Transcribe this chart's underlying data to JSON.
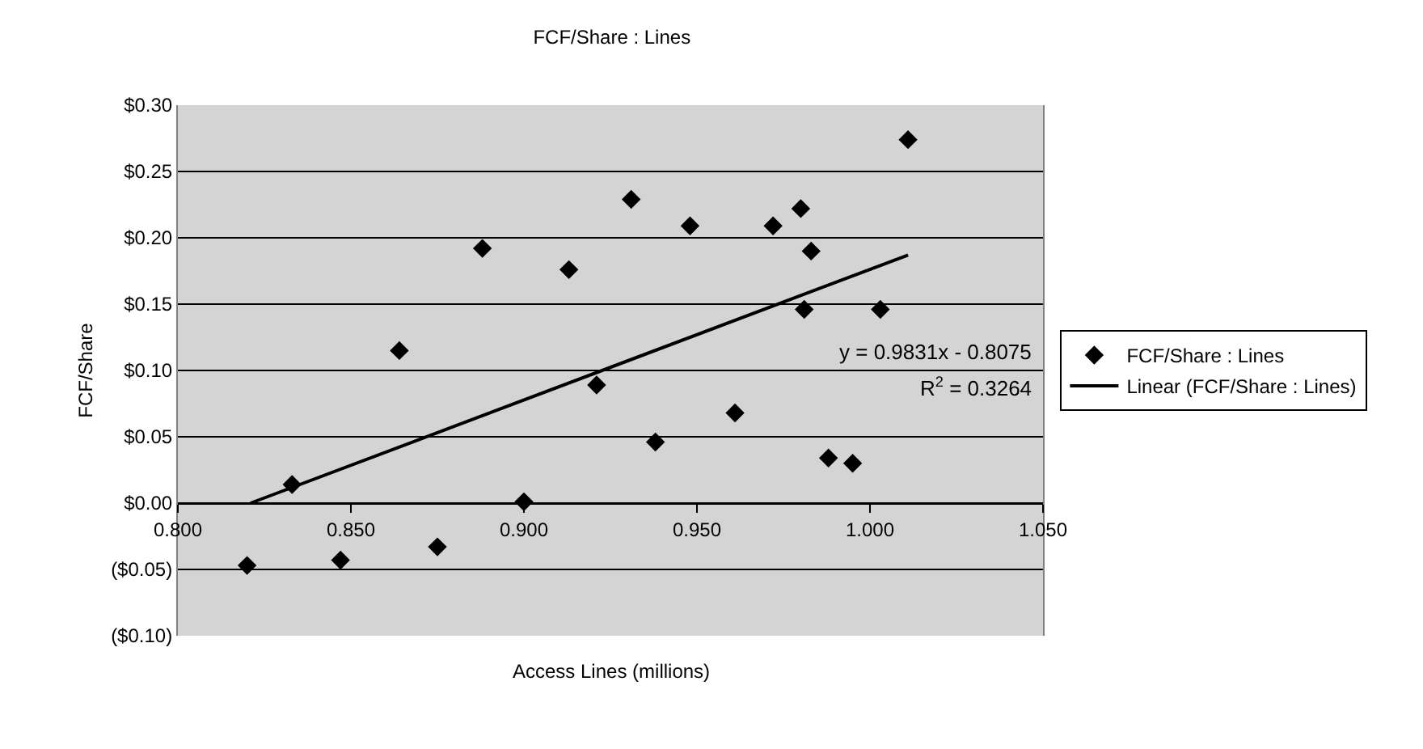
{
  "chart_data": {
    "type": "scatter",
    "title": "FCF/Share : Lines",
    "xlabel": "Access Lines (millions)",
    "ylabel": "FCF/Share",
    "series": [
      {
        "name": "FCF/Share : Lines",
        "color": "#000000",
        "marker": "diamond",
        "x": [
          0.82,
          0.833,
          0.847,
          0.864,
          0.875,
          0.888,
          0.9,
          0.913,
          0.921,
          0.931,
          0.938,
          0.948,
          0.961,
          0.972,
          0.98,
          0.981,
          0.983,
          0.988,
          0.995,
          1.003,
          1.011
        ],
        "values": [
          -0.047,
          0.014,
          -0.043,
          0.115,
          -0.033,
          0.192,
          0.001,
          0.176,
          0.089,
          0.229,
          0.046,
          0.209,
          0.068,
          0.209,
          0.222,
          0.146,
          0.19,
          0.034,
          0.03,
          0.146,
          0.274
        ]
      },
      {
        "name": "Linear (FCF/Share : Lines)",
        "type": "line",
        "color": "#000000",
        "line_style": "solid",
        "x": [
          0.821,
          1.011
        ],
        "values": [
          0.0,
          0.187
        ]
      }
    ],
    "xlim": [
      0.8,
      1.05
    ],
    "xticks": [
      {
        "value": 0.8,
        "label": "0.800"
      },
      {
        "value": 0.85,
        "label": "0.850"
      },
      {
        "value": 0.9,
        "label": "0.900"
      },
      {
        "value": 0.95,
        "label": "0.950"
      },
      {
        "value": 1.0,
        "label": "1.000"
      },
      {
        "value": 1.05,
        "label": "1.050"
      }
    ],
    "ylim": [
      -0.1,
      0.3
    ],
    "yticks": [
      {
        "value": -0.1,
        "label": "($0.10)"
      },
      {
        "value": -0.05,
        "label": "($0.05)"
      },
      {
        "value": 0,
        "label": "$0.00"
      },
      {
        "value": 0.05,
        "label": "$0.05"
      },
      {
        "value": 0.1,
        "label": "$0.10"
      },
      {
        "value": 0.15,
        "label": "$0.15"
      },
      {
        "value": 0.2,
        "label": "$0.20"
      },
      {
        "value": 0.25,
        "label": "$0.25"
      },
      {
        "value": 0.3,
        "label": "$0.30"
      }
    ],
    "grid": "y",
    "legend": "right",
    "annotations": [
      "y = 0.9831x - 0.8075",
      "R$^{2}$ = 0.3264"
    ]
  }
}
